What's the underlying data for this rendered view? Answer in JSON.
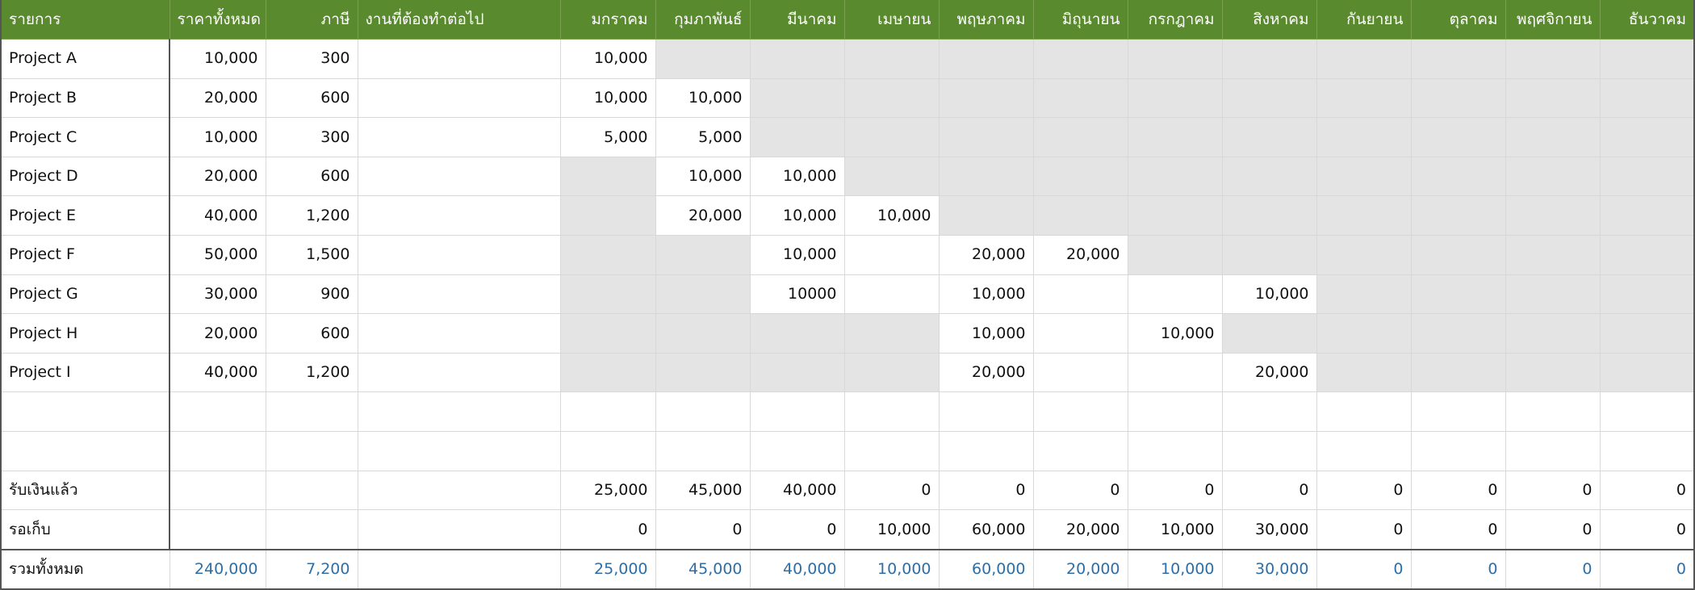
{
  "headers": [
    "รายการ",
    "ราคาทั้งหมด",
    "ภาษี",
    "งานที่ต้องทำต่อไป",
    "มกราคม",
    "กุมภาพันธ์",
    "มีนาคม",
    "เมษายน",
    "พฤษภาคม",
    "มิถุนายน",
    "กรกฎาคม",
    "สิงหาคม",
    "กันยายน",
    "ตุลาคม",
    "พฤศจิกายน",
    "ธันวาคม"
  ],
  "rows": [
    {
      "name": "Project A",
      "total": "10,000",
      "tax": "300",
      "task": "",
      "months": [
        "10,000",
        "",
        "",
        "",
        "",
        "",
        "",
        "",
        "",
        "",
        "",
        ""
      ],
      "shaded": [
        false,
        true,
        true,
        true,
        true,
        true,
        true,
        true,
        true,
        true,
        true,
        true
      ]
    },
    {
      "name": "Project B",
      "total": "20,000",
      "tax": "600",
      "task": "",
      "months": [
        "10,000",
        "10,000",
        "",
        "",
        "",
        "",
        "",
        "",
        "",
        "",
        "",
        ""
      ],
      "shaded": [
        false,
        false,
        true,
        true,
        true,
        true,
        true,
        true,
        true,
        true,
        true,
        true
      ]
    },
    {
      "name": "Project C",
      "total": "10,000",
      "tax": "300",
      "task": "",
      "months": [
        "5,000",
        "5,000",
        "",
        "",
        "",
        "",
        "",
        "",
        "",
        "",
        "",
        ""
      ],
      "shaded": [
        false,
        false,
        true,
        true,
        true,
        true,
        true,
        true,
        true,
        true,
        true,
        true
      ]
    },
    {
      "name": "Project D",
      "total": "20,000",
      "tax": "600",
      "task": "",
      "months": [
        "",
        "10,000",
        "10,000",
        "",
        "",
        "",
        "",
        "",
        "",
        "",
        "",
        ""
      ],
      "shaded": [
        true,
        false,
        false,
        true,
        true,
        true,
        true,
        true,
        true,
        true,
        true,
        true
      ]
    },
    {
      "name": "Project E",
      "total": "40,000",
      "tax": "1,200",
      "task": "",
      "months": [
        "",
        "20,000",
        "10,000",
        "10,000",
        "",
        "",
        "",
        "",
        "",
        "",
        "",
        ""
      ],
      "shaded": [
        true,
        false,
        false,
        false,
        true,
        true,
        true,
        true,
        true,
        true,
        true,
        true
      ]
    },
    {
      "name": "Project F",
      "total": "50,000",
      "tax": "1,500",
      "task": "",
      "months": [
        "",
        "",
        "10,000",
        "",
        "20,000",
        "20,000",
        "",
        "",
        "",
        "",
        "",
        ""
      ],
      "shaded": [
        true,
        true,
        false,
        false,
        false,
        false,
        true,
        true,
        true,
        true,
        true,
        true
      ]
    },
    {
      "name": "Project G",
      "total": "30,000",
      "tax": "900",
      "task": "",
      "months": [
        "",
        "",
        "10000",
        "",
        "10,000",
        "",
        "",
        "10,000",
        "",
        "",
        "",
        ""
      ],
      "shaded": [
        true,
        true,
        false,
        false,
        false,
        false,
        false,
        false,
        true,
        true,
        true,
        true
      ]
    },
    {
      "name": "Project H",
      "total": "20,000",
      "tax": "600",
      "task": "",
      "months": [
        "",
        "",
        "",
        "",
        "10,000",
        "",
        "10,000",
        "",
        "",
        "",
        "",
        ""
      ],
      "shaded": [
        true,
        true,
        true,
        true,
        false,
        false,
        false,
        true,
        true,
        true,
        true,
        true
      ]
    },
    {
      "name": "Project I",
      "total": "40,000",
      "tax": "1,200",
      "task": "",
      "months": [
        "",
        "",
        "",
        "",
        "20,000",
        "",
        "",
        "20,000",
        "",
        "",
        "",
        ""
      ],
      "shaded": [
        true,
        true,
        true,
        true,
        false,
        false,
        false,
        false,
        true,
        true,
        true,
        true
      ]
    },
    {
      "name": "",
      "total": "",
      "tax": "",
      "task": "",
      "months": [
        "",
        "",
        "",
        "",
        "",
        "",
        "",
        "",
        "",
        "",
        "",
        ""
      ],
      "shaded": [
        false,
        false,
        false,
        false,
        false,
        false,
        false,
        false,
        false,
        false,
        false,
        false
      ]
    },
    {
      "name": "",
      "total": "",
      "tax": "",
      "task": "",
      "months": [
        "",
        "",
        "",
        "",
        "",
        "",
        "",
        "",
        "",
        "",
        "",
        ""
      ],
      "shaded": [
        false,
        false,
        false,
        false,
        false,
        false,
        false,
        false,
        false,
        false,
        false,
        false
      ]
    },
    {
      "name": "รับเงินแล้ว",
      "total": "",
      "tax": "",
      "task": "",
      "months": [
        "25,000",
        "45,000",
        "40,000",
        "0",
        "0",
        "0",
        "0",
        "0",
        "0",
        "0",
        "0",
        "0"
      ],
      "shaded": [
        false,
        false,
        false,
        false,
        false,
        false,
        false,
        false,
        false,
        false,
        false,
        false
      ]
    },
    {
      "name": "รอเก็บ",
      "total": "",
      "tax": "",
      "task": "",
      "months": [
        "0",
        "0",
        "0",
        "10,000",
        "60,000",
        "20,000",
        "10,000",
        "30,000",
        "0",
        "0",
        "0",
        "0"
      ],
      "shaded": [
        false,
        false,
        false,
        false,
        false,
        false,
        false,
        false,
        false,
        false,
        false,
        false
      ]
    }
  ],
  "footer": {
    "name": "รวมทั้งหมด",
    "total": "240,000",
    "tax": "7,200",
    "task": "",
    "months": [
      "25,000",
      "45,000",
      "40,000",
      "10,000",
      "60,000",
      "20,000",
      "10,000",
      "30,000",
      "0",
      "0",
      "0",
      "0"
    ]
  },
  "colors": {
    "header_bg": "#5a8a2e",
    "header_text": "#ffffff",
    "shade": "#e4e4e4",
    "total_text": "#2e6ea6",
    "grid": "#d8d8d8"
  }
}
